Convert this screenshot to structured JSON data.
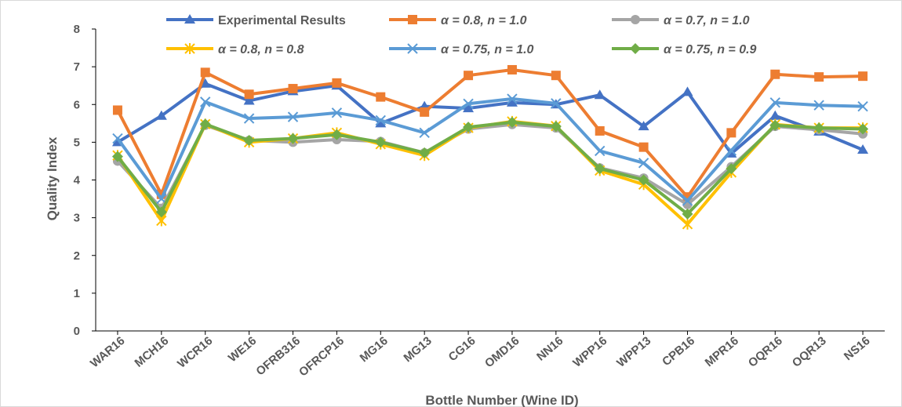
{
  "chart_data": {
    "type": "line",
    "title": "",
    "xlabel": "Bottle Number (Wine ID)",
    "ylabel": "Quality Index",
    "ylim": [
      0,
      8
    ],
    "yticks": [
      0,
      1,
      2,
      3,
      4,
      5,
      6,
      7,
      8
    ],
    "grid": false,
    "legend_position": "top",
    "categories": [
      "WAR16",
      "MCH16",
      "WCR16",
      "WE16",
      "OFRB316",
      "OFRCP16",
      "MG16",
      "MG13",
      "CG16",
      "OMD16",
      "NN16",
      "WPP16",
      "WPP13",
      "CPB16",
      "MPR16",
      "OQR16",
      "OQR13",
      "NS16"
    ],
    "series": [
      {
        "name": "Experimental Results",
        "color": "#4472C4",
        "marker": "triangle",
        "values": [
          5.0,
          5.7,
          6.55,
          6.1,
          6.35,
          6.5,
          5.5,
          5.95,
          5.9,
          6.05,
          6.0,
          6.25,
          5.42,
          6.33,
          4.7,
          5.7,
          5.28,
          4.8
        ]
      },
      {
        "name": "α = 0.8, n = 1.0",
        "color": "#ED7D31",
        "marker": "square",
        "values": [
          5.85,
          3.62,
          6.85,
          6.27,
          6.42,
          6.57,
          6.2,
          5.8,
          6.77,
          6.92,
          6.77,
          5.3,
          4.87,
          3.55,
          5.25,
          6.8,
          6.73,
          6.75
        ]
      },
      {
        "name": "α = 0.7, n = 1.0",
        "color": "#A5A5A5",
        "marker": "circle",
        "values": [
          4.5,
          3.25,
          5.45,
          5.05,
          5.0,
          5.07,
          5.02,
          4.72,
          5.35,
          5.47,
          5.38,
          4.32,
          4.05,
          3.35,
          4.35,
          5.42,
          5.33,
          5.22
        ]
      },
      {
        "name": "α = 0.8, n = 0.8",
        "color": "#FFC000",
        "marker": "star",
        "values": [
          4.65,
          2.92,
          5.48,
          5.0,
          5.1,
          5.25,
          4.95,
          4.65,
          5.38,
          5.55,
          5.43,
          4.25,
          3.88,
          2.83,
          4.2,
          5.47,
          5.38,
          5.38
        ]
      },
      {
        "name": "α = 0.75, n = 1.0",
        "color": "#5B9BD5",
        "marker": "x",
        "values": [
          5.1,
          3.5,
          6.07,
          5.63,
          5.67,
          5.78,
          5.58,
          5.25,
          6.02,
          6.15,
          6.03,
          4.77,
          4.45,
          3.45,
          4.78,
          6.05,
          5.98,
          5.95
        ]
      },
      {
        "name": "α = 0.75, n = 0.9",
        "color": "#70AD47",
        "marker": "diamond",
        "values": [
          4.62,
          3.15,
          5.48,
          5.05,
          5.1,
          5.2,
          5.0,
          4.72,
          5.4,
          5.53,
          5.42,
          4.3,
          4.0,
          3.1,
          4.3,
          5.45,
          5.38,
          5.35
        ]
      }
    ]
  }
}
